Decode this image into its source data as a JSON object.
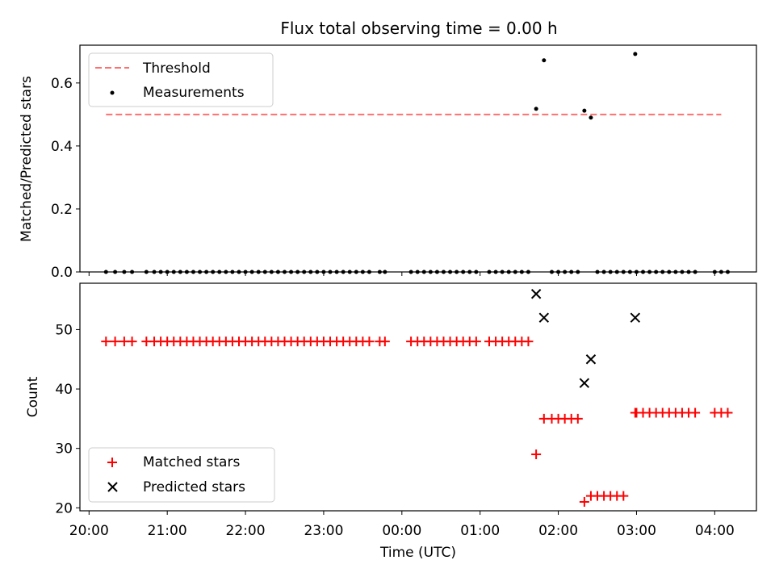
{
  "chart_data": [
    {
      "type": "scatter",
      "title": "Flux total observing time = 0.00 h",
      "xlabel": "",
      "ylabel": "Matched/Predicted stars",
      "xlim": [
        "19:53",
        "04:32"
      ],
      "ylim": [
        0,
        0.72
      ],
      "yticks": [
        0.0,
        0.2,
        0.4,
        0.6
      ],
      "yticklabels": [
        "0.0",
        "0.2",
        "0.4",
        "0.6"
      ],
      "legend": {
        "position": "top-left",
        "entries": [
          "Threshold",
          "Measurements"
        ]
      },
      "threshold": {
        "name": "Threshold",
        "value": 0.5,
        "x_start": "20:13",
        "x_end": "04:05",
        "color": "#ff6f6f",
        "style": "dashed"
      },
      "series": [
        {
          "name": "Measurements",
          "color": "#000000",
          "points": [
            [
              "20:13",
              0
            ],
            [
              "20:20",
              0
            ],
            [
              "20:27",
              0
            ],
            [
              "20:33",
              0
            ],
            [
              "20:44",
              0
            ],
            [
              "20:50",
              0
            ],
            [
              "20:55",
              0
            ],
            [
              "21:00",
              0
            ],
            [
              "21:05",
              0
            ],
            [
              "21:10",
              0
            ],
            [
              "21:15",
              0
            ],
            [
              "21:20",
              0
            ],
            [
              "21:25",
              0
            ],
            [
              "21:30",
              0
            ],
            [
              "21:35",
              0
            ],
            [
              "21:40",
              0
            ],
            [
              "21:45",
              0
            ],
            [
              "21:50",
              0
            ],
            [
              "21:55",
              0
            ],
            [
              "22:00",
              0
            ],
            [
              "22:05",
              0
            ],
            [
              "22:10",
              0
            ],
            [
              "22:15",
              0
            ],
            [
              "22:20",
              0
            ],
            [
              "22:25",
              0
            ],
            [
              "22:30",
              0
            ],
            [
              "22:35",
              0
            ],
            [
              "22:40",
              0
            ],
            [
              "22:45",
              0
            ],
            [
              "22:50",
              0
            ],
            [
              "22:55",
              0
            ],
            [
              "23:00",
              0
            ],
            [
              "23:05",
              0
            ],
            [
              "23:10",
              0
            ],
            [
              "23:15",
              0
            ],
            [
              "23:20",
              0
            ],
            [
              "23:25",
              0
            ],
            [
              "23:30",
              0
            ],
            [
              "23:35",
              0
            ],
            [
              "23:43",
              0
            ],
            [
              "23:47",
              0
            ],
            [
              "00:07",
              0
            ],
            [
              "00:12",
              0
            ],
            [
              "00:17",
              0
            ],
            [
              "00:22",
              0
            ],
            [
              "00:27",
              0
            ],
            [
              "00:32",
              0
            ],
            [
              "00:37",
              0
            ],
            [
              "00:42",
              0
            ],
            [
              "00:47",
              0
            ],
            [
              "00:52",
              0
            ],
            [
              "00:57",
              0
            ],
            [
              "01:07",
              0
            ],
            [
              "01:12",
              0
            ],
            [
              "01:17",
              0
            ],
            [
              "01:22",
              0
            ],
            [
              "01:27",
              0
            ],
            [
              "01:32",
              0
            ],
            [
              "01:37",
              0
            ],
            [
              "01:43",
              0.518
            ],
            [
              "01:49",
              0.672
            ],
            [
              "01:55",
              0
            ],
            [
              "02:00",
              0
            ],
            [
              "02:05",
              0
            ],
            [
              "02:10",
              0
            ],
            [
              "02:15",
              0
            ],
            [
              "02:20",
              0.512
            ],
            [
              "02:25",
              0.49
            ],
            [
              "02:30",
              0
            ],
            [
              "02:35",
              0
            ],
            [
              "02:40",
              0
            ],
            [
              "02:45",
              0
            ],
            [
              "02:50",
              0
            ],
            [
              "02:55",
              0
            ],
            [
              "02:59",
              0.692
            ],
            [
              "03:00",
              0
            ],
            [
              "03:05",
              0
            ],
            [
              "03:10",
              0
            ],
            [
              "03:15",
              0
            ],
            [
              "03:20",
              0
            ],
            [
              "03:25",
              0
            ],
            [
              "03:30",
              0
            ],
            [
              "03:35",
              0
            ],
            [
              "03:40",
              0
            ],
            [
              "03:45",
              0
            ],
            [
              "04:00",
              0
            ],
            [
              "04:05",
              0
            ],
            [
              "04:10",
              0
            ]
          ]
        }
      ]
    },
    {
      "type": "scatter",
      "title": "",
      "xlabel": "Time (UTC)",
      "ylabel": "Count",
      "xlim": [
        "19:53",
        "04:32"
      ],
      "ylim": [
        19.5,
        57.8
      ],
      "xticks": [
        "20:00",
        "21:00",
        "22:00",
        "23:00",
        "00:00",
        "01:00",
        "02:00",
        "03:00",
        "04:00"
      ],
      "yticks": [
        20,
        30,
        40,
        50
      ],
      "yticklabels": [
        "20",
        "30",
        "40",
        "50"
      ],
      "legend": {
        "position": "bottom-left",
        "entries": [
          "Matched stars",
          "Predicted stars"
        ]
      },
      "series": [
        {
          "name": "Matched stars",
          "marker": "+",
          "color": "#ff0000",
          "points": [
            [
              "20:13",
              48
            ],
            [
              "20:20",
              48
            ],
            [
              "20:27",
              48
            ],
            [
              "20:33",
              48
            ],
            [
              "20:44",
              48
            ],
            [
              "20:50",
              48
            ],
            [
              "20:55",
              48
            ],
            [
              "21:00",
              48
            ],
            [
              "21:05",
              48
            ],
            [
              "21:10",
              48
            ],
            [
              "21:15",
              48
            ],
            [
              "21:20",
              48
            ],
            [
              "21:25",
              48
            ],
            [
              "21:30",
              48
            ],
            [
              "21:35",
              48
            ],
            [
              "21:40",
              48
            ],
            [
              "21:45",
              48
            ],
            [
              "21:50",
              48
            ],
            [
              "21:55",
              48
            ],
            [
              "22:00",
              48
            ],
            [
              "22:05",
              48
            ],
            [
              "22:10",
              48
            ],
            [
              "22:15",
              48
            ],
            [
              "22:20",
              48
            ],
            [
              "22:25",
              48
            ],
            [
              "22:30",
              48
            ],
            [
              "22:35",
              48
            ],
            [
              "22:40",
              48
            ],
            [
              "22:45",
              48
            ],
            [
              "22:50",
              48
            ],
            [
              "22:55",
              48
            ],
            [
              "23:00",
              48
            ],
            [
              "23:05",
              48
            ],
            [
              "23:10",
              48
            ],
            [
              "23:15",
              48
            ],
            [
              "23:20",
              48
            ],
            [
              "23:25",
              48
            ],
            [
              "23:30",
              48
            ],
            [
              "23:35",
              48
            ],
            [
              "23:43",
              48
            ],
            [
              "23:47",
              48
            ],
            [
              "00:07",
              48
            ],
            [
              "00:12",
              48
            ],
            [
              "00:17",
              48
            ],
            [
              "00:22",
              48
            ],
            [
              "00:27",
              48
            ],
            [
              "00:32",
              48
            ],
            [
              "00:37",
              48
            ],
            [
              "00:42",
              48
            ],
            [
              "00:47",
              48
            ],
            [
              "00:52",
              48
            ],
            [
              "00:57",
              48
            ],
            [
              "01:07",
              48
            ],
            [
              "01:12",
              48
            ],
            [
              "01:17",
              48
            ],
            [
              "01:22",
              48
            ],
            [
              "01:27",
              48
            ],
            [
              "01:32",
              48
            ],
            [
              "01:37",
              48
            ],
            [
              "01:43",
              29
            ],
            [
              "01:49",
              35
            ],
            [
              "01:55",
              35
            ],
            [
              "02:00",
              35
            ],
            [
              "02:05",
              35
            ],
            [
              "02:10",
              35
            ],
            [
              "02:15",
              35
            ],
            [
              "02:20",
              21
            ],
            [
              "02:25",
              22
            ],
            [
              "02:30",
              22
            ],
            [
              "02:35",
              22
            ],
            [
              "02:40",
              22
            ],
            [
              "02:45",
              22
            ],
            [
              "02:50",
              22
            ],
            [
              "02:59",
              36
            ],
            [
              "03:00",
              36
            ],
            [
              "03:05",
              36
            ],
            [
              "03:10",
              36
            ],
            [
              "03:15",
              36
            ],
            [
              "03:20",
              36
            ],
            [
              "03:25",
              36
            ],
            [
              "03:30",
              36
            ],
            [
              "03:35",
              36
            ],
            [
              "03:40",
              36
            ],
            [
              "03:45",
              36
            ],
            [
              "04:00",
              36
            ],
            [
              "04:05",
              36
            ],
            [
              "04:10",
              36
            ]
          ]
        },
        {
          "name": "Predicted stars",
          "marker": "x",
          "color": "#000000",
          "points": [
            [
              "01:43",
              56
            ],
            [
              "01:49",
              52
            ],
            [
              "02:20",
              41
            ],
            [
              "02:25",
              45
            ],
            [
              "02:59",
              52
            ]
          ]
        }
      ]
    }
  ]
}
